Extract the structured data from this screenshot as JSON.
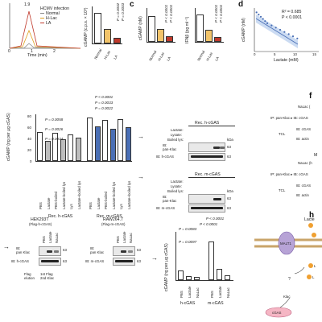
{
  "colors": {
    "normal": "#8a8a8a",
    "hlac": "#e0a020",
    "la": "#c0392b",
    "mcgas": "#4a6fb5",
    "hcgas": "#777777",
    "scatter": "#4a6fb5"
  },
  "panels": {
    "c": "c",
    "d": "d",
    "f": "f",
    "h": "h"
  },
  "a": {
    "legend_title": "HCMV infection",
    "legend": [
      "Normal",
      "H-Lac",
      "LA"
    ],
    "peak_label": "1.9",
    "xlabel": "Time (min)",
    "xticks": [
      "0",
      "1",
      "2"
    ]
  },
  "b": {
    "ylabel": "cGAMP (c.p.s. × 10³)",
    "cats": [
      "Normal",
      "H-Lac",
      "LA"
    ],
    "p1": "P = 0.0002",
    "p2": "P = 0.0003"
  },
  "c": {
    "left_ylabel": "cGAMP (nM)",
    "right_ylabel": "IFNβ (pg ml⁻¹)",
    "cats": [
      "Normal",
      "H-Lac",
      "LA"
    ],
    "p_left_1": "P < 0.0001",
    "p_left_2": "P < 0.0001",
    "p_right_1": "P < 0.0001",
    "p_right_2": "P < 0.0001"
  },
  "d": {
    "r2": "R² = 0.685",
    "p": "P < 0.0001",
    "xlabel": "Lactate (mM)",
    "ylabel": "cGAMP (nM)",
    "xticks": [
      "0",
      "5",
      "10",
      "15"
    ],
    "yticks": [
      "0",
      "5",
      "10",
      "15",
      "20"
    ]
  },
  "e": {
    "ylabel": "cGAMP (ng per µg cGAS)",
    "yticks": [
      "0",
      "20",
      "40",
      "60",
      "80"
    ],
    "group_labels": [
      "Rec. h-cGAS",
      "Rec. m-cGAS"
    ],
    "cond_labels": [
      "PBS",
      "Lactate",
      "PBS-boiled",
      "Lactate-boiled lys",
      "Lys",
      "Lactate+boiled lys"
    ],
    "pvals": [
      "P = 0.0034",
      "P = 0.0026",
      "P = 0.0058",
      "P = 0.0022",
      "P = 0.0033",
      "P < 0.0001"
    ]
  },
  "blot_h": {
    "title": "Rec. h-cGAS",
    "kda": "kDa",
    "rows": [
      "Lactate:",
      "Lysate:",
      "Boiled lys:"
    ],
    "ib1": "IB:\npan-Klac",
    "ib2": "IB: h-cGAS",
    "mw": [
      "63",
      "63"
    ]
  },
  "blot_m": {
    "title": "Rec. m-cGAS",
    "kda": "kDa",
    "rows": [
      "Lactate:",
      "Lysate:",
      "Boiled lys:"
    ],
    "ib1": "IB:\npan-Klac",
    "ib2": "IB: m-cGAS",
    "mw": [
      "63",
      "63"
    ]
  },
  "f": {
    "top": "NaLac (",
    "ip": "IP: pan-Klac ▸ IB: cGAS",
    "tcl": "TCL",
    "ib_cgas": "IB: cGAS",
    "ib_actin": "IB: actin",
    "top2": "NaLac (h",
    "ip2": "IP: pan-Klac ▸ IB: cGAS",
    "tcl2": "TCL",
    "ib2_cgas": "IB: cGAS",
    "ib2_actin": "IB: actin",
    "mark": "M"
  },
  "g_hek": {
    "title": "HEK293T",
    "subtitle": "(Flag-h-cGAS)",
    "cols": [
      "PBS",
      "Lactate",
      "NaLac"
    ],
    "ib1": "IB:\npan Klac",
    "ib2": "IB: h-cGAS",
    "mw": [
      "63",
      "63"
    ],
    "foot1": "Flag\nelution",
    "foot2": "1st Flag\n2nd Klac"
  },
  "g_raw": {
    "title": "RAW264.7",
    "subtitle": "(Flag-m-cGAS)",
    "cols": [
      "PBS",
      "Lactate",
      "NaLac"
    ],
    "ib1": "IB:\npan Klac",
    "ib2": "IB: m-cGAS",
    "mw": [
      "63",
      "63"
    ]
  },
  "g_chart": {
    "ylabel": "cGAMP (ng per µg cGAS)",
    "cats": [
      "PBS",
      "Lactate",
      "NaLac",
      "PBS",
      "Lactate",
      "NaLac"
    ],
    "groups": [
      "h-cGAS",
      "m-cGAS"
    ],
    "pvals": [
      "P = 0.0097",
      "P = 0.0083",
      "P < 0.0001",
      "P < 0.0001"
    ]
  },
  "h": {
    "lacte": "Lacte",
    "malt": "MALT1",
    "klac": "Klac",
    "cgas": "cGAS",
    "q": "?",
    "l1": "L",
    "l2": "L"
  },
  "chart_data": [
    {
      "type": "line",
      "title": "",
      "xlabel": "Time (min)",
      "ylabel": "",
      "x": [
        0,
        0.5,
        1,
        1.5,
        2,
        2.5
      ],
      "series": [
        {
          "name": "Normal",
          "values": [
            0,
            0.05,
            0.3,
            0.1,
            0,
            0
          ]
        },
        {
          "name": "H-Lac",
          "values": [
            0,
            0.3,
            1.0,
            0.3,
            0.05,
            0
          ]
        },
        {
          "name": "LA",
          "values": [
            0,
            0.5,
            1.9,
            0.6,
            0.1,
            0
          ]
        }
      ]
    },
    {
      "type": "bar",
      "title": "",
      "ylabel": "cGAMP (c.p.s. × 10³)",
      "categories": [
        "Normal",
        "H-Lac",
        "LA"
      ],
      "values": [
        22,
        11,
        4
      ]
    },
    {
      "type": "bar",
      "title": "",
      "ylabel": "cGAMP (nM)",
      "categories": [
        "Normal",
        "H-Lac",
        "LA"
      ],
      "values": [
        14,
        7,
        3
      ]
    },
    {
      "type": "bar",
      "title": "",
      "ylabel": "IFNβ (pg ml⁻¹)",
      "categories": [
        "Normal",
        "H-Lac",
        "LA"
      ],
      "values": [
        18,
        8,
        3
      ]
    },
    {
      "type": "scatter",
      "title": "",
      "xlabel": "Lactate (mM)",
      "ylabel": "cGAMP (nM)",
      "xlim": [
        0,
        15
      ],
      "ylim": [
        0,
        20
      ],
      "x": [
        0.5,
        1,
        1.5,
        2,
        2.5,
        3,
        4,
        5,
        6,
        7,
        8,
        9,
        10
      ],
      "y": [
        18,
        17,
        16,
        15,
        14,
        13,
        12,
        11,
        10,
        9,
        8,
        7,
        6
      ]
    },
    {
      "type": "bar",
      "title": "",
      "ylabel": "cGAMP (ng per µg cGAS)",
      "ylim": [
        0,
        80
      ],
      "categories": [
        "PBS",
        "Lactate",
        "PBS-boiled",
        "Lactate-boiled lys",
        "Lys",
        "Lactate+boiled lys"
      ],
      "series": [
        {
          "name": "Rec. h-cGAS",
          "values": [
            50,
            35,
            48,
            37,
            46,
            40
          ]
        },
        {
          "name": "Rec. m-cGAS",
          "values": [
            75,
            60,
            70,
            55,
            72,
            58
          ]
        }
      ]
    },
    {
      "type": "bar",
      "title": "",
      "ylabel": "cGAMP (ng per µg cGAS)",
      "ylim": [
        0,
        50
      ],
      "categories": [
        "PBS",
        "Lactate",
        "NaLac",
        "PBS",
        "Lactate",
        "NaLac"
      ],
      "values": [
        10,
        4,
        3,
        40,
        12,
        5
      ]
    }
  ]
}
